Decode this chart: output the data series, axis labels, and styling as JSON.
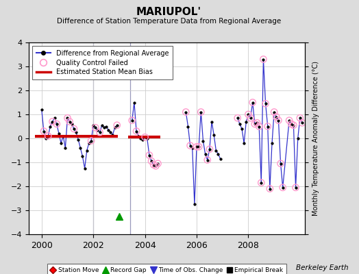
{
  "title": "MARIUPOL'",
  "subtitle": "Difference of Station Temperature Data from Regional Average",
  "ylabel_right": "Monthly Temperature Anomaly Difference (°C)",
  "credit": "Berkeley Earth",
  "xlim": [
    1999.5,
    2010.2
  ],
  "ylim": [
    -4,
    4
  ],
  "yticks": [
    -4,
    -3,
    -2,
    -1,
    0,
    1,
    2,
    3,
    4
  ],
  "xticks": [
    2000,
    2002,
    2004,
    2006,
    2008
  ],
  "background_color": "#dcdcdc",
  "plot_bg_color": "#ffffff",
  "segment1_x": [
    2000.0,
    2000.083,
    2000.167,
    2000.25,
    2000.333,
    2000.417,
    2000.5,
    2000.583,
    2000.667,
    2000.75,
    2000.833,
    2000.917,
    2001.0,
    2001.083,
    2001.167,
    2001.25,
    2001.333,
    2001.417,
    2001.5,
    2001.583,
    2001.667,
    2001.75,
    2001.833,
    2001.917,
    2002.0,
    2002.083,
    2002.167,
    2002.25,
    2002.333,
    2002.417,
    2002.5,
    2002.583,
    2002.667,
    2002.75,
    2002.833,
    2002.917
  ],
  "segment1_y": [
    1.2,
    0.3,
    0.0,
    0.1,
    0.5,
    0.7,
    0.85,
    0.6,
    0.2,
    -0.2,
    0.1,
    -0.4,
    0.85,
    0.7,
    0.6,
    0.4,
    0.25,
    -0.05,
    -0.4,
    -0.75,
    -1.25,
    -0.5,
    -0.2,
    -0.1,
    0.55,
    0.45,
    0.35,
    0.25,
    0.55,
    0.45,
    0.5,
    0.35,
    0.25,
    0.15,
    0.45,
    0.55
  ],
  "segment1_bias_y": 0.08,
  "segment1_bias_x_start": 1999.75,
  "segment1_bias_x_end": 2002.95,
  "gap_marker_x": 2003.0,
  "gap_marker_y": -3.25,
  "segment2_x": [
    2003.5,
    2003.583,
    2003.667,
    2003.75,
    2003.833,
    2003.917,
    2004.0,
    2004.083,
    2004.167,
    2004.25,
    2004.333,
    2004.417,
    2004.5
  ],
  "segment2_y": [
    0.75,
    1.5,
    0.3,
    0.1,
    0.0,
    -0.05,
    0.05,
    0.0,
    -0.7,
    -0.95,
    -1.1,
    -1.15,
    -1.05
  ],
  "segment2_bias_y": 0.05,
  "segment2_bias_x_start": 2003.35,
  "segment2_bias_x_end": 2004.6,
  "vline1_x": 2002.0,
  "vline2_x": 2003.42,
  "segment3_x": [
    2005.583,
    2005.667,
    2005.75,
    2005.833,
    2005.917,
    2006.0,
    2006.083,
    2006.167,
    2006.25,
    2006.333,
    2006.417,
    2006.5,
    2006.583,
    2006.667,
    2006.75,
    2006.833,
    2006.917
  ],
  "segment3_y": [
    1.1,
    0.5,
    -0.3,
    -0.4,
    -2.75,
    -0.35,
    -0.35,
    1.1,
    -0.1,
    -0.65,
    -0.9,
    -0.45,
    0.7,
    0.15,
    -0.5,
    -0.65,
    -0.85
  ],
  "segment4_x": [
    2007.583,
    2007.667,
    2007.75,
    2007.833,
    2007.917,
    2008.0,
    2008.083,
    2008.167,
    2008.25,
    2008.333,
    2008.417,
    2008.5,
    2008.583,
    2008.667,
    2008.75,
    2008.833,
    2008.917,
    2009.0,
    2009.083,
    2009.167,
    2009.25,
    2009.333,
    2009.583,
    2009.667,
    2009.75,
    2009.833,
    2009.917,
    2010.0,
    2010.083
  ],
  "segment4_y": [
    0.85,
    0.6,
    0.4,
    -0.2,
    0.7,
    1.0,
    0.85,
    1.5,
    0.6,
    0.65,
    0.5,
    -1.85,
    3.3,
    1.45,
    0.5,
    -2.1,
    -0.2,
    1.1,
    0.9,
    0.75,
    -1.05,
    -2.05,
    0.75,
    0.6,
    0.55,
    -2.05,
    0.0,
    0.85,
    0.65
  ],
  "qc_failed_x": [
    2000.083,
    2000.25,
    2000.417,
    2000.583,
    2001.0,
    2001.083,
    2001.25,
    2001.917,
    2002.083,
    2002.25,
    2002.917,
    2003.5,
    2003.667,
    2004.0,
    2004.167,
    2004.25,
    2004.333,
    2004.417,
    2004.5,
    2005.583,
    2005.75,
    2006.0,
    2006.083,
    2006.167,
    2006.417,
    2006.5,
    2007.583,
    2008.0,
    2008.083,
    2008.167,
    2008.25,
    2008.333,
    2008.417,
    2008.5,
    2008.583,
    2008.667,
    2008.75,
    2008.833,
    2009.0,
    2009.083,
    2009.167,
    2009.25,
    2009.333,
    2009.583,
    2009.667,
    2009.75,
    2009.833,
    2010.0,
    2010.083
  ],
  "qc_failed_y": [
    0.3,
    0.1,
    0.7,
    0.6,
    0.85,
    0.7,
    0.4,
    -0.1,
    0.45,
    0.25,
    0.55,
    0.75,
    0.3,
    0.05,
    -0.7,
    -0.95,
    -1.1,
    -1.15,
    -1.05,
    1.1,
    -0.3,
    -0.35,
    -0.35,
    1.1,
    -0.9,
    -0.45,
    0.85,
    1.0,
    0.85,
    1.5,
    0.6,
    0.65,
    0.5,
    -1.85,
    3.3,
    1.45,
    0.5,
    -2.1,
    1.1,
    0.9,
    0.75,
    -1.05,
    -2.05,
    0.75,
    0.6,
    0.55,
    -2.05,
    0.85,
    0.65
  ],
  "line_color": "#3333cc",
  "marker_color": "#000000",
  "qc_color": "#ff99cc",
  "bias_color": "#cc0000",
  "vline_color": "#9999bb",
  "grid_color": "#cccccc"
}
